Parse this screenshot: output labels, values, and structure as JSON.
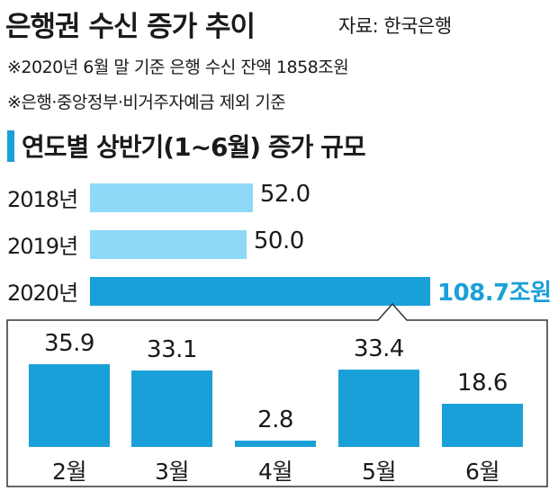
{
  "header": {
    "title": "은행권 수신 증가 추이",
    "source": "자료: 한국은행"
  },
  "notes": [
    "※2020년 6월 말 기준 은행 수신 잔액 1858조원",
    "※은행·중앙정부·비거주자예금 제외 기준"
  ],
  "section_title": "연도별 상반기(1~6월) 증가 규모",
  "colors": {
    "light_bar": "#8ed8f8",
    "dark_bar": "#1aa0d8",
    "highlight_text": "#1aa0d8"
  },
  "chart_data": [
    {
      "type": "bar",
      "orientation": "horizontal",
      "categories": [
        "2018년",
        "2019년",
        "2020년"
      ],
      "values": [
        52.0,
        50.0,
        108.7
      ],
      "value_labels": [
        "52.0",
        "50.0",
        "108.7조원"
      ],
      "highlight": "2020년",
      "xlim": [
        0,
        108.7
      ]
    },
    {
      "type": "bar",
      "orientation": "vertical",
      "categories": [
        "2월",
        "3월",
        "4월",
        "5월",
        "6월"
      ],
      "values": [
        35.9,
        33.1,
        2.8,
        33.4,
        18.6
      ],
      "value_labels": [
        "35.9",
        "33.1",
        "2.8",
        "33.4",
        "18.6"
      ],
      "ylim": [
        0,
        35.9
      ]
    }
  ]
}
